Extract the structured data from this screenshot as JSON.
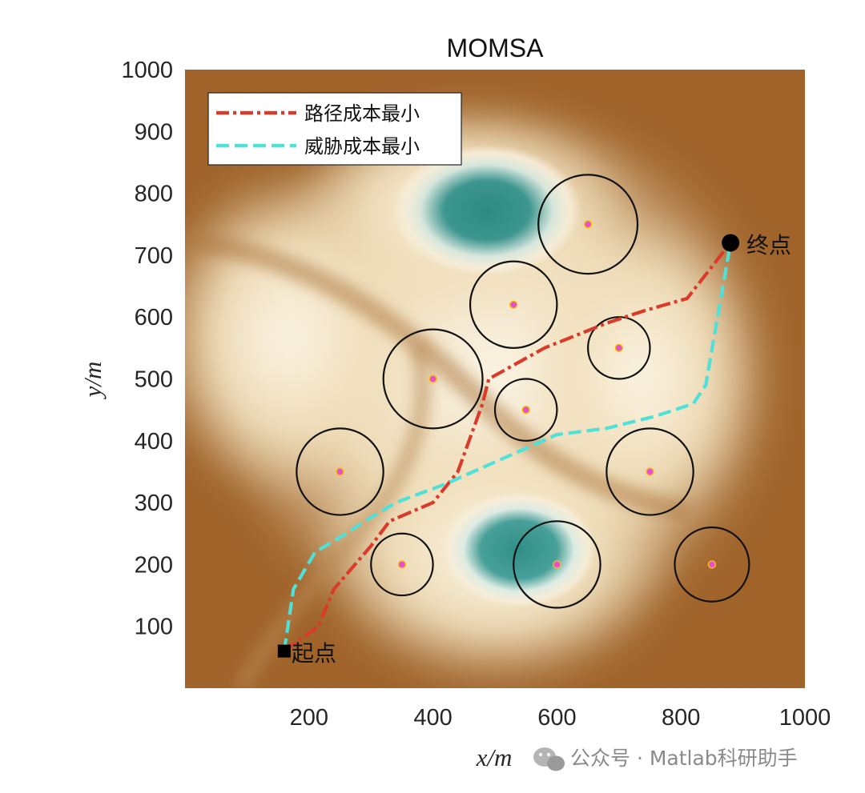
{
  "chart_data": {
    "type": "scatter",
    "title": "MOMSA",
    "xlabel": "x/m",
    "ylabel": "y/m",
    "xlim": [
      0,
      1000
    ],
    "ylim": [
      0,
      1000
    ],
    "xticks": [
      200,
      400,
      600,
      800,
      1000
    ],
    "yticks": [
      100,
      200,
      300,
      400,
      500,
      600,
      700,
      800,
      900,
      1000
    ],
    "grid": false,
    "legend_position": "top-left",
    "background_colormap": [
      "#a0642a",
      "#f6eedb",
      "#2d8c86"
    ],
    "start": {
      "label": "起点",
      "x": 160,
      "y": 60
    },
    "end": {
      "label": "终点",
      "x": 880,
      "y": 720
    },
    "threats": [
      {
        "x": 650,
        "y": 750,
        "r": 80
      },
      {
        "x": 530,
        "y": 620,
        "r": 70
      },
      {
        "x": 700,
        "y": 550,
        "r": 50
      },
      {
        "x": 400,
        "y": 500,
        "r": 80
      },
      {
        "x": 550,
        "y": 450,
        "r": 50
      },
      {
        "x": 250,
        "y": 350,
        "r": 70
      },
      {
        "x": 750,
        "y": 350,
        "r": 70
      },
      {
        "x": 350,
        "y": 200,
        "r": 50
      },
      {
        "x": 600,
        "y": 200,
        "r": 70
      },
      {
        "x": 850,
        "y": 200,
        "r": 60
      }
    ],
    "series": [
      {
        "name": "路径成本最小",
        "color": "#d93a2a",
        "style": "dash-dot",
        "x": [
          160,
          215,
          240,
          300,
          330,
          400,
          440,
          480,
          490,
          580,
          680,
          740,
          810,
          880
        ],
        "y": [
          60,
          100,
          160,
          230,
          270,
          300,
          350,
          460,
          500,
          550,
          590,
          610,
          630,
          720
        ]
      },
      {
        "name": "威胁成本最小",
        "color": "#4fe0d8",
        "style": "dashed",
        "x": [
          160,
          175,
          210,
          260,
          290,
          340,
          420,
          510,
          600,
          680,
          760,
          820,
          840,
          880
        ],
        "y": [
          60,
          160,
          220,
          250,
          270,
          300,
          330,
          370,
          410,
          420,
          440,
          460,
          490,
          720
        ]
      }
    ]
  },
  "watermark": {
    "text": "公众号 · Matlab科研助手",
    "icon": "wechat-icon"
  }
}
